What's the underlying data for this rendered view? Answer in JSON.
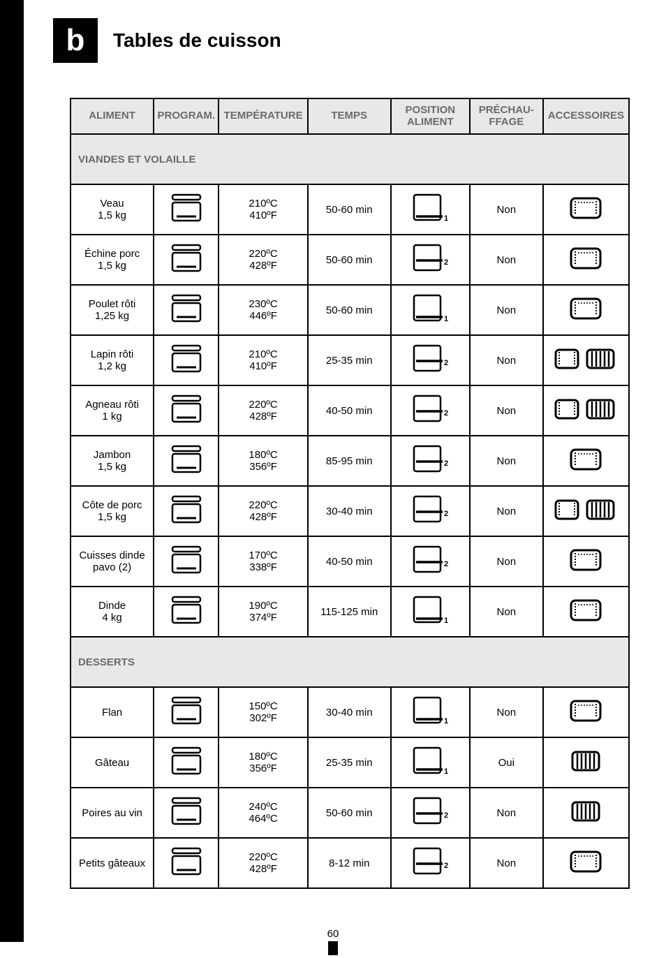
{
  "page": {
    "header_letter": "b",
    "title": "Tables de cuisson",
    "footer_page": "60"
  },
  "columns": {
    "aliment": "ALIMENT",
    "program": "PROGRAM.",
    "temperature": "TEMPÉRATURE",
    "temps": "TEMPS",
    "position": "POSITION ALIMENT",
    "prechauffage": "PRÉCHAU-FFAGE",
    "accessoires": "ACCESSOIRES"
  },
  "sections": [
    {
      "title": "VIANDES ET VOLAILLE",
      "rows": [
        {
          "aliment": "Veau\n1,5 kg",
          "tempC": "210ºC",
          "tempF": "410ºF",
          "temps": "50-60 min",
          "pos": "1",
          "pre": "Non",
          "acc": [
            "tray"
          ]
        },
        {
          "aliment": "Échine porc\n1,5 kg",
          "tempC": "220ºC",
          "tempF": "428ºF",
          "temps": "50-60 min",
          "pos": "2",
          "pre": "Non",
          "acc": [
            "tray"
          ]
        },
        {
          "aliment": "Poulet rôti\n1,25 kg",
          "tempC": "230ºC",
          "tempF": "446ºF",
          "temps": "50-60 min",
          "pos": "1",
          "pre": "Non",
          "acc": [
            "tray"
          ]
        },
        {
          "aliment": "Lapin rôti\n1,2 kg",
          "tempC": "210ºC",
          "tempF": "410ºF",
          "temps": "25-35 min",
          "pos": "2",
          "pre": "Non",
          "acc": [
            "tray",
            "grill"
          ]
        },
        {
          "aliment": "Agneau rôti\n1 kg",
          "tempC": "220ºC",
          "tempF": "428ºF",
          "temps": "40-50 min",
          "pos": "2",
          "pre": "Non",
          "acc": [
            "tray",
            "grill"
          ]
        },
        {
          "aliment": "Jambon\n1,5 kg",
          "tempC": "180ºC",
          "tempF": "356ºF",
          "temps": "85-95 min",
          "pos": "2",
          "pre": "Non",
          "acc": [
            "tray"
          ]
        },
        {
          "aliment": "Côte de porc\n1,5 kg",
          "tempC": "220ºC",
          "tempF": "428ºF",
          "temps": "30-40 min",
          "pos": "2",
          "pre": "Non",
          "acc": [
            "tray",
            "grill"
          ]
        },
        {
          "aliment": "Cuisses dinde\npavo (2)",
          "tempC": "170ºC",
          "tempF": "338ºF",
          "temps": "40-50 min",
          "pos": "2",
          "pre": "Non",
          "acc": [
            "tray"
          ]
        },
        {
          "aliment": "Dinde\n4 kg",
          "tempC": "190ºC",
          "tempF": "374ºF",
          "temps": "115-125 min",
          "pos": "1",
          "pre": "Non",
          "acc": [
            "tray"
          ]
        }
      ]
    },
    {
      "title": "DESSERTS",
      "rows": [
        {
          "aliment": "Flan",
          "tempC": "150ºC",
          "tempF": "302ºF",
          "temps": "30-40 min",
          "pos": "1",
          "pre": "Non",
          "acc": [
            "tray"
          ]
        },
        {
          "aliment": "Gâteau",
          "tempC": "180ºC",
          "tempF": "356ºF",
          "temps": "25-35 min",
          "pos": "1",
          "pre": "Oui",
          "acc": [
            "grill"
          ]
        },
        {
          "aliment": "Poires au vin",
          "tempC": "240ºC",
          "tempF": "464ºC",
          "temps": "50-60 min",
          "pos": "2",
          "pre": "Non",
          "acc": [
            "grill"
          ]
        },
        {
          "aliment": "Petits gâteaux",
          "tempC": "220ºC",
          "tempF": "428ºF",
          "temps": "8-12 min",
          "pos": "2",
          "pre": "Non",
          "acc": [
            "tray"
          ]
        }
      ]
    }
  ],
  "icons": {
    "colors": {
      "stroke": "#000000",
      "fill_none": "none"
    }
  }
}
